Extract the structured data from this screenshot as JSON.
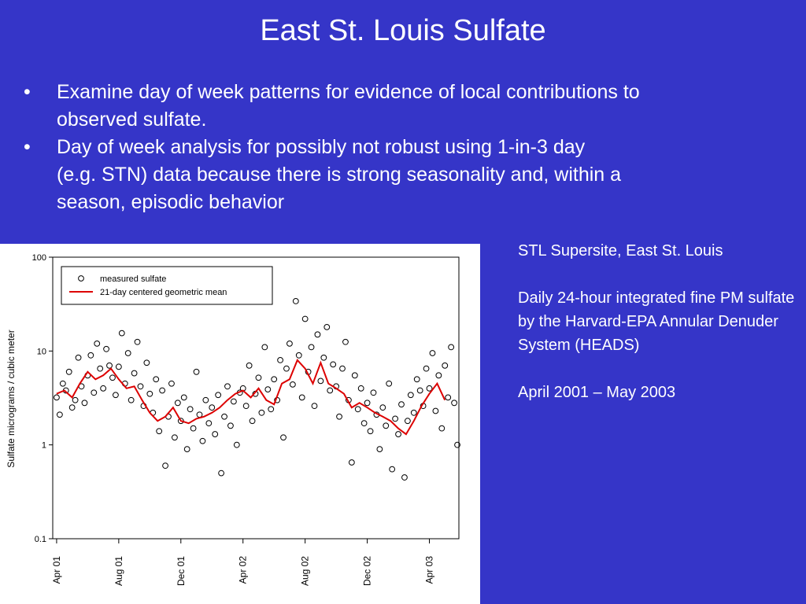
{
  "title": "East St. Louis Sulfate",
  "bullets": [
    [
      "Examine day of week patterns for evidence of local contributions to",
      "observed sulfate."
    ],
    [
      "Day of week analysis for possibly not robust using 1-in-3 day",
      "(e.g. STN) data because there is strong seasonality and, within a",
      "season, episodic behavior"
    ]
  ],
  "notes": [
    "STL Supersite, East St. Louis",
    "Daily 24-hour integrated fine PM sulfate by the Harvard-EPA Annular Denuder System (HEADS)",
    "April 2001 – May 2003"
  ],
  "chart_data": {
    "type": "scatter",
    "y_label": "Sulfate micrograms / cubic meter",
    "log_y": true,
    "ylim": [
      0.1,
      100
    ],
    "yticks": [
      100,
      10,
      1,
      0.1
    ],
    "xlim": [
      -0.25,
      25.9
    ],
    "xticks": [
      {
        "value": 0,
        "label": "Apr 01"
      },
      {
        "value": 4,
        "label": "Aug 01"
      },
      {
        "value": 8,
        "label": "Dec 01"
      },
      {
        "value": 12,
        "label": "Apr 02"
      },
      {
        "value": 16,
        "label": "Aug 02"
      },
      {
        "value": 20,
        "label": "Dec 02"
      },
      {
        "value": 24,
        "label": "Apr 03"
      }
    ],
    "legend": "upper left",
    "series": [
      {
        "name": "measured sulfate",
        "color": "#000000",
        "x": [
          0,
          0.2,
          0.4,
          0.6,
          0.8,
          1,
          1.2,
          1.4,
          1.6,
          1.8,
          2,
          2.2,
          2.4,
          2.6,
          2.8,
          3,
          3.2,
          3.4,
          3.6,
          3.8,
          4,
          4.2,
          4.4,
          4.6,
          4.8,
          5,
          5.2,
          5.4,
          5.6,
          5.8,
          6,
          6.2,
          6.4,
          6.6,
          6.8,
          7,
          7.2,
          7.4,
          7.6,
          7.8,
          8,
          8.2,
          8.4,
          8.6,
          8.8,
          9,
          9.2,
          9.4,
          9.6,
          9.8,
          10,
          10.2,
          10.4,
          10.6,
          10.8,
          11,
          11.2,
          11.4,
          11.6,
          11.8,
          12,
          12.2,
          12.4,
          12.6,
          12.8,
          13,
          13.2,
          13.4,
          13.6,
          13.8,
          14,
          14.2,
          14.4,
          14.6,
          14.8,
          15,
          15.2,
          15.4,
          15.6,
          15.8,
          16,
          16.2,
          16.4,
          16.6,
          16.8,
          17,
          17.2,
          17.4,
          17.6,
          17.8,
          18,
          18.2,
          18.4,
          18.6,
          18.8,
          19,
          19.2,
          19.4,
          19.6,
          19.8,
          20,
          20.2,
          20.4,
          20.6,
          20.8,
          21,
          21.2,
          21.4,
          21.6,
          21.8,
          22,
          22.2,
          22.4,
          22.6,
          22.8,
          23,
          23.2,
          23.4,
          23.6,
          23.8,
          24,
          24.2,
          24.4,
          24.6,
          24.8,
          25,
          25.2,
          25.4,
          25.6,
          25.8
        ],
        "values": [
          3.2,
          2.1,
          4.5,
          3.8,
          6.0,
          2.5,
          3.0,
          8.5,
          4.2,
          2.8,
          5.5,
          9.0,
          3.6,
          12.0,
          6.5,
          4.0,
          10.5,
          7.0,
          5.2,
          3.4,
          6.8,
          15.5,
          4.5,
          9.5,
          3.0,
          5.8,
          12.5,
          4.2,
          2.6,
          7.5,
          3.5,
          2.2,
          5.0,
          1.4,
          3.8,
          0.6,
          2.0,
          4.5,
          1.2,
          2.8,
          1.8,
          3.2,
          0.9,
          2.4,
          1.5,
          6.0,
          2.1,
          1.1,
          3.0,
          1.7,
          2.5,
          1.3,
          3.4,
          0.5,
          2.0,
          4.2,
          1.6,
          2.9,
          1.0,
          3.6,
          4.0,
          2.6,
          7.0,
          1.8,
          3.5,
          5.2,
          2.2,
          11.0,
          3.9,
          2.4,
          5.0,
          3.0,
          8.0,
          1.2,
          6.5,
          12.0,
          4.4,
          34.0,
          9.0,
          3.2,
          22.0,
          6.0,
          11.0,
          2.6,
          15.0,
          4.8,
          8.5,
          18.0,
          3.8,
          7.2,
          4.2,
          2.0,
          6.5,
          12.5,
          3.0,
          0.65,
          5.5,
          2.4,
          4.0,
          1.7,
          2.8,
          1.4,
          3.6,
          2.1,
          0.9,
          2.5,
          1.6,
          4.5,
          0.55,
          1.9,
          1.3,
          2.7,
          0.45,
          1.8,
          3.4,
          2.2,
          5.0,
          3.8,
          2.6,
          6.5,
          4.0,
          9.5,
          2.3,
          5.5,
          1.5,
          7.0,
          3.2,
          11.0,
          2.8,
          1.0
        ]
      },
      {
        "name": "21-day centered geometric mean",
        "color": "#dd0000",
        "style": "line",
        "x": [
          0,
          0.5,
          1,
          1.5,
          2,
          2.5,
          3,
          3.5,
          4,
          4.5,
          5,
          5.5,
          6,
          6.5,
          7,
          7.5,
          8,
          8.5,
          9,
          9.5,
          10,
          10.5,
          11,
          11.5,
          12,
          12.5,
          13,
          13.5,
          14,
          14.5,
          15,
          15.5,
          16,
          16.5,
          17,
          17.5,
          18,
          18.5,
          19,
          19.5,
          20,
          20.5,
          21,
          21.5,
          22,
          22.5,
          23,
          23.5,
          24,
          24.5,
          25
        ],
        "values": [
          3.5,
          3.8,
          3.2,
          4.5,
          6.0,
          5.0,
          5.5,
          6.5,
          5.0,
          4.0,
          4.2,
          3.0,
          2.2,
          1.8,
          2.0,
          2.5,
          1.8,
          1.7,
          1.9,
          2.0,
          2.2,
          2.5,
          3.0,
          3.5,
          3.8,
          3.2,
          4.0,
          3.0,
          2.7,
          4.5,
          5.0,
          8.0,
          6.5,
          4.5,
          7.5,
          4.5,
          4.0,
          3.5,
          2.5,
          2.8,
          2.5,
          2.2,
          2.0,
          1.8,
          1.5,
          1.3,
          1.8,
          2.6,
          3.5,
          4.5,
          3.0
        ]
      }
    ]
  }
}
